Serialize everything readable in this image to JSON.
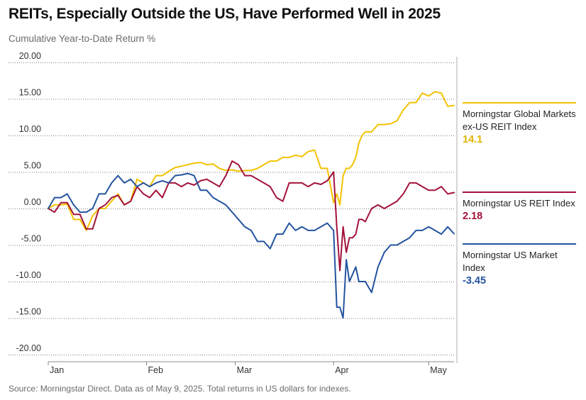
{
  "title": "REITs, Especially Outside the US, Have Performed Well in 2025",
  "subtitle": "Cumulative Year-to-Date Return %",
  "source": "Source: Morningstar Direct. Data as of May 9, 2025. Total returns in US dollars for indexes.",
  "colors": {
    "global": "#f2c200",
    "reit": "#a3123a",
    "market": "#2453a0",
    "axis": "#333333",
    "grid": "#000000"
  },
  "legend": [
    {
      "name": "Morningstar Global Markets ex-US REIT Index",
      "value": "14.1",
      "color": "#f2c200"
    },
    {
      "name": "Morningstar US REIT Index",
      "value": "2.18",
      "color": "#a3123a"
    },
    {
      "name": "Morningstar US Market Index",
      "value": "-3.45",
      "color": "#2453a0"
    }
  ],
  "chart_data": {
    "type": "line",
    "title": "REITs, Especially Outside the US, Have Performed Well in 2025",
    "ylabel": "Cumulative Year-to-Date Return %",
    "xlabel": "",
    "ylim": [
      -20,
      20
    ],
    "yticks": [
      "20.00",
      "15.00",
      "10.00",
      "5.00",
      "0.00",
      "-5.00",
      "-10.00",
      "-15.00",
      "-20.00"
    ],
    "ytick_values": [
      20,
      15,
      10,
      5,
      0,
      -5,
      -10,
      -15,
      -20
    ],
    "xlim": [
      0,
      128
    ],
    "xticks": [
      {
        "label": "Jan",
        "x": 0
      },
      {
        "label": "Feb",
        "x": 31
      },
      {
        "label": "Mar",
        "x": 59
      },
      {
        "label": "Apr",
        "x": 90
      },
      {
        "label": "May",
        "x": 120
      }
    ],
    "series": [
      {
        "name": "Morningstar Global Markets ex-US REIT Index",
        "color": "#f2c200",
        "x": [
          0,
          2,
          4,
          6,
          8,
          10,
          12,
          14,
          16,
          18,
          20,
          22,
          24,
          26,
          28,
          30,
          32,
          34,
          36,
          38,
          40,
          42,
          44,
          46,
          48,
          50,
          52,
          54,
          56,
          58,
          60,
          62,
          64,
          66,
          68,
          70,
          72,
          74,
          76,
          78,
          80,
          82,
          84,
          86,
          88,
          90,
          91,
          92,
          93,
          94,
          95,
          96,
          97,
          98,
          99,
          100,
          102,
          104,
          106,
          108,
          110,
          112,
          114,
          116,
          118,
          120,
          122,
          124,
          126,
          128
        ],
        "values": [
          0,
          0.5,
          0.5,
          0.6,
          -1.5,
          -1.5,
          -3,
          -1,
          0,
          0,
          1,
          2,
          0.5,
          1,
          4,
          3.5,
          3,
          4.5,
          4.5,
          5.1,
          5.6,
          5.8,
          6,
          6.2,
          6.3,
          6,
          6.1,
          5.5,
          5.2,
          5.3,
          5.1,
          5.2,
          5.2,
          5.5,
          6,
          6.5,
          6.5,
          7,
          7,
          7.3,
          7.1,
          7.8,
          8,
          5.5,
          5.5,
          0.8,
          2,
          0.5,
          4.5,
          5.5,
          5.5,
          6,
          7,
          9,
          10,
          10.5,
          10.5,
          11.5,
          11.5,
          11.6,
          12,
          13.5,
          14.5,
          14.5,
          15.8,
          15.4,
          16,
          15.8,
          14,
          14.1
        ]
      },
      {
        "name": "Morningstar US REIT Index",
        "color": "#a3123a",
        "x": [
          0,
          2,
          4,
          6,
          8,
          10,
          12,
          14,
          16,
          18,
          20,
          22,
          24,
          26,
          28,
          30,
          32,
          34,
          36,
          38,
          40,
          42,
          44,
          46,
          48,
          50,
          52,
          54,
          56,
          58,
          60,
          62,
          64,
          66,
          68,
          70,
          72,
          74,
          76,
          78,
          80,
          82,
          84,
          86,
          88,
          90,
          91,
          92,
          93,
          94,
          95,
          96,
          97,
          98,
          99,
          100,
          102,
          104,
          106,
          108,
          110,
          112,
          114,
          116,
          118,
          120,
          122,
          124,
          126,
          128
        ],
        "values": [
          0,
          -0.5,
          0.8,
          0.8,
          -0.8,
          -0.8,
          -2.8,
          -2.8,
          0,
          0.5,
          1.5,
          1.8,
          0.5,
          1,
          3,
          2,
          1.5,
          2.5,
          1.5,
          3.5,
          3.5,
          3,
          3.5,
          3.2,
          3.8,
          4,
          3.5,
          3,
          4.5,
          6.5,
          6,
          4.5,
          4.5,
          4,
          3.5,
          3,
          1.5,
          1,
          3.5,
          3.5,
          3.5,
          3,
          3.5,
          3.3,
          3.8,
          5,
          -2.5,
          -8.5,
          -2.5,
          -6,
          -4,
          -4,
          -3.5,
          -1.5,
          -1.5,
          -1.8,
          0,
          0.5,
          0,
          0.5,
          1,
          2,
          3.5,
          3.5,
          3,
          2.5,
          2.5,
          3,
          2,
          2.18
        ]
      },
      {
        "name": "Morningstar US Market Index",
        "color": "#2453a0",
        "x": [
          0,
          2,
          4,
          6,
          8,
          10,
          12,
          14,
          16,
          18,
          20,
          22,
          24,
          26,
          28,
          30,
          32,
          34,
          36,
          38,
          40,
          42,
          44,
          46,
          48,
          50,
          52,
          54,
          56,
          58,
          60,
          62,
          64,
          66,
          68,
          70,
          72,
          74,
          76,
          78,
          80,
          82,
          84,
          86,
          88,
          90,
          91,
          92,
          93,
          94,
          95,
          96,
          97,
          98,
          99,
          100,
          102,
          104,
          106,
          108,
          110,
          112,
          114,
          116,
          118,
          120,
          122,
          124,
          126,
          128
        ],
        "values": [
          0,
          1.5,
          1.5,
          2,
          0.5,
          -0.5,
          -0.5,
          0,
          2,
          2,
          3.5,
          4.5,
          3.5,
          4,
          3,
          3.5,
          3,
          3.5,
          3.8,
          3.5,
          4.5,
          4.6,
          4.8,
          4.5,
          2.5,
          2.5,
          1.5,
          1,
          0.5,
          -0.5,
          -1.5,
          -2.5,
          -3,
          -4.5,
          -4.5,
          -5.5,
          -3.5,
          -3.5,
          -2,
          -3,
          -2.5,
          -3,
          -3,
          -2.5,
          -2,
          -3,
          -13.5,
          -13.5,
          -15,
          -7,
          -10,
          -9,
          -8,
          -10,
          -10,
          -10,
          -11.5,
          -8,
          -6,
          -5,
          -5,
          -4.5,
          -4,
          -3,
          -3,
          -2.5,
          -3,
          -3.5,
          -2.5,
          -3.45
        ]
      }
    ]
  }
}
